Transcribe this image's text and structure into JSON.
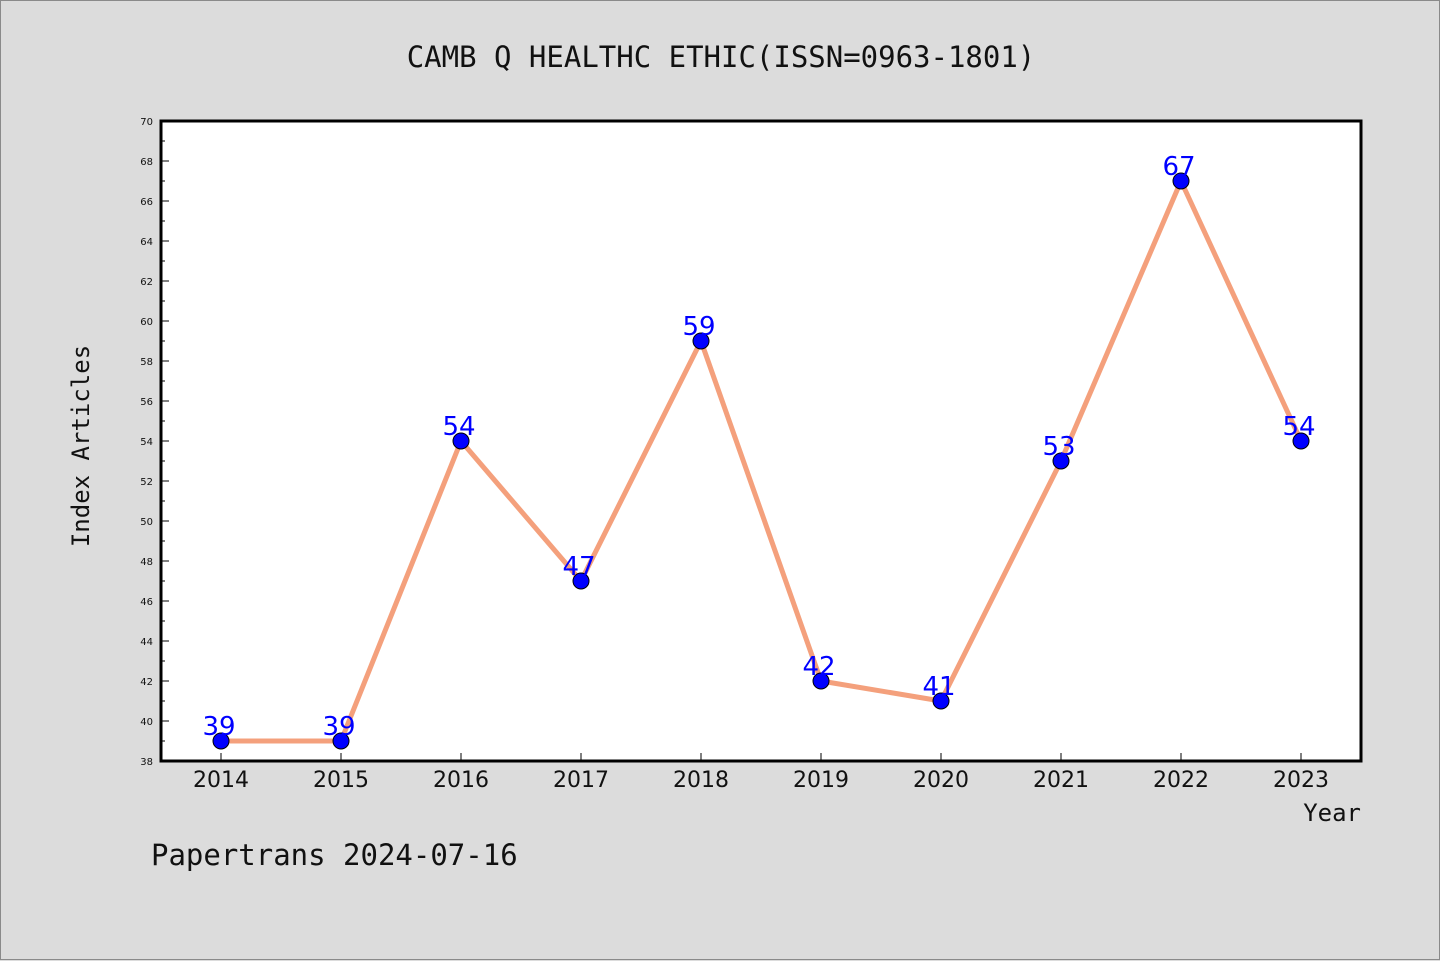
{
  "chart_data": {
    "type": "line",
    "title": "CAMB Q HEALTHC ETHIC(ISSN=0963-1801)",
    "xlabel": "Year",
    "ylabel": "Index Articles",
    "categories": [
      "2014",
      "2015",
      "2016",
      "2017",
      "2018",
      "2019",
      "2020",
      "2021",
      "2022",
      "2023"
    ],
    "series": [
      {
        "values": [
          39,
          39,
          54,
          47,
          59,
          42,
          41,
          53,
          67,
          54
        ]
      }
    ],
    "ylim": [
      38,
      70
    ],
    "yticks": [
      "38",
      "40",
      "42",
      "44",
      "46",
      "48",
      "50",
      "52",
      "54",
      "56",
      "58",
      "60",
      "62",
      "64",
      "66",
      "68",
      "70"
    ],
    "grid": false,
    "line_color": "#f4a07c",
    "marker_color": "#0000ff",
    "label_color": "#0000ff"
  },
  "footer": "Papertrans 2024-07-16"
}
